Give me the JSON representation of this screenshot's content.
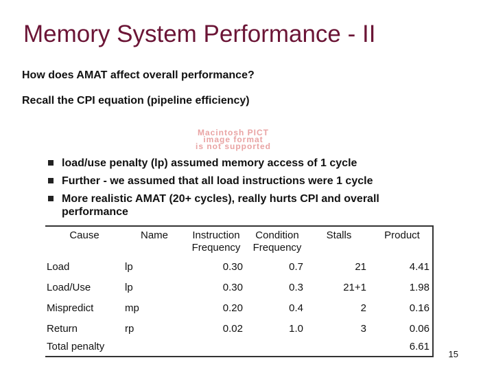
{
  "title": "Memory System Performance - II",
  "lines": [
    "How does AMAT affect overall performance?",
    "Recall the CPI equation (pipeline efficiency)"
  ],
  "image_placeholder": [
    "Macintosh PICT",
    "image format",
    "is not supported"
  ],
  "bullets": [
    "load/use penalty (lp) assumed memory access of 1 cycle",
    "Further - we assumed that all load instructions were 1 cycle",
    "More realistic AMAT (20+ cycles), really hurts CPI and overall performance"
  ],
  "table": {
    "header": [
      "Cause",
      "Name",
      "Instruction Frequency",
      "Condition Frequency",
      "Stalls",
      "Product"
    ],
    "rows": [
      [
        "Load",
        "lp",
        "0.30",
        "0.7",
        "21",
        "4.41"
      ],
      [
        "Load/Use",
        "lp",
        "0.30",
        "0.3",
        "21+1",
        "1.98"
      ],
      [
        "Mispredict",
        "mp",
        "0.20",
        "0.4",
        "2",
        "0.16"
      ],
      [
        "Return",
        "rp",
        "0.02",
        "1.0",
        "3",
        "0.06"
      ]
    ],
    "total": {
      "label": "Total penalty",
      "value": "6.61"
    }
  },
  "page_number": "15"
}
